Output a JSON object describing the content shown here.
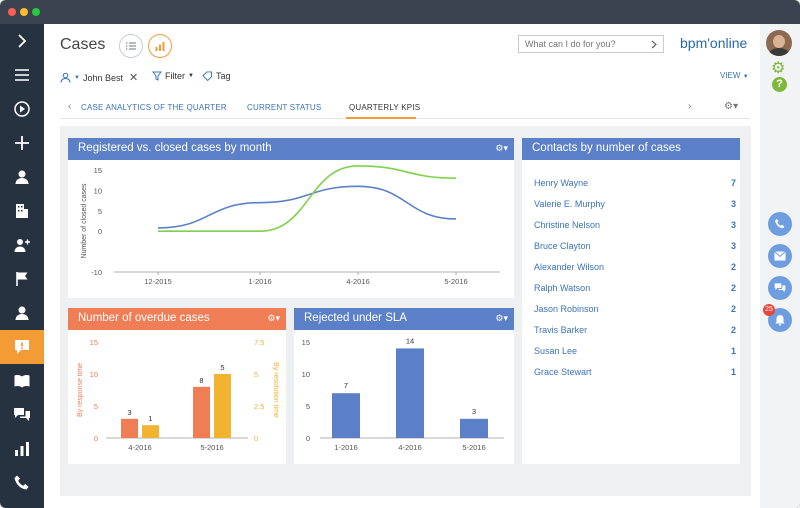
{
  "header": {
    "title": "Cases",
    "search_placeholder": "What can I do for you?",
    "logo": "bpm'online"
  },
  "filters": {
    "owner": "John Best",
    "filter_label": "Filter",
    "tag_label": "Tag",
    "view_label": "VIEW"
  },
  "tabs": [
    {
      "label": "CASE ANALYTICS OF THE QUARTER"
    },
    {
      "label": "CURRENT STATUS"
    },
    {
      "label": "QUARTERLY KPIS"
    }
  ],
  "widgets": {
    "line_title": "Registered vs. closed cases by month",
    "contacts_title": "Contacts by number of cases",
    "overdue_title": "Number of overdue cases",
    "sla_title": "Rejected under SLA"
  },
  "contacts": [
    {
      "name": "Henry Wayne",
      "count": "7"
    },
    {
      "name": "Valerie E. Murphy",
      "count": "3"
    },
    {
      "name": "Christine Nelson",
      "count": "3"
    },
    {
      "name": "Bruce Clayton",
      "count": "3"
    },
    {
      "name": "Alexander Wilson",
      "count": "2"
    },
    {
      "name": "Ralph Watson",
      "count": "2"
    },
    {
      "name": "Jason Robinson",
      "count": "2"
    },
    {
      "name": "Travis Barker",
      "count": "2"
    },
    {
      "name": "Susan Lee",
      "count": "1"
    },
    {
      "name": "Grace Stewart",
      "count": "1"
    }
  ],
  "notifications": {
    "count": "25"
  },
  "colors": {
    "accent_orange": "#f39c35",
    "blue": "#5b80c7",
    "green": "#7ed14a",
    "salmon": "#ef7d56",
    "yellow": "#f2b331"
  },
  "chart_data": [
    {
      "type": "line",
      "title": "Registered vs. closed cases by month",
      "ylabel": "Number of closed cases",
      "categories": [
        "12-2015",
        "1-2016",
        "4-2016",
        "5-2016"
      ],
      "yticks": [
        -10,
        0,
        5,
        10,
        15
      ],
      "ylim": [
        -10,
        15
      ],
      "series": [
        {
          "color": "#5b80c7",
          "values": [
            0.8,
            7,
            11,
            3
          ]
        },
        {
          "color": "#7ed14a",
          "values": [
            0,
            0,
            16,
            13
          ]
        }
      ]
    },
    {
      "type": "bar",
      "title": "Number of overdue cases",
      "ylabel": "By response time",
      "y2label": "By resolution time",
      "categories": [
        "4-2016",
        "5-2016"
      ],
      "yticks": [
        0,
        5,
        10,
        15
      ],
      "y2ticks": [
        0,
        2.5,
        5,
        7.5
      ],
      "series": [
        {
          "color": "#ef7d56",
          "values": [
            3,
            8
          ]
        },
        {
          "color": "#f2b331",
          "values": [
            1,
            5
          ]
        }
      ]
    },
    {
      "type": "bar",
      "title": "Rejected under SLA",
      "categories": [
        "1-2016",
        "4-2016",
        "5-2016"
      ],
      "yticks": [
        0,
        5,
        10,
        15
      ],
      "ylim": [
        0,
        15
      ],
      "series": [
        {
          "color": "#5b80c7",
          "values": [
            7,
            14,
            3
          ]
        }
      ]
    }
  ]
}
